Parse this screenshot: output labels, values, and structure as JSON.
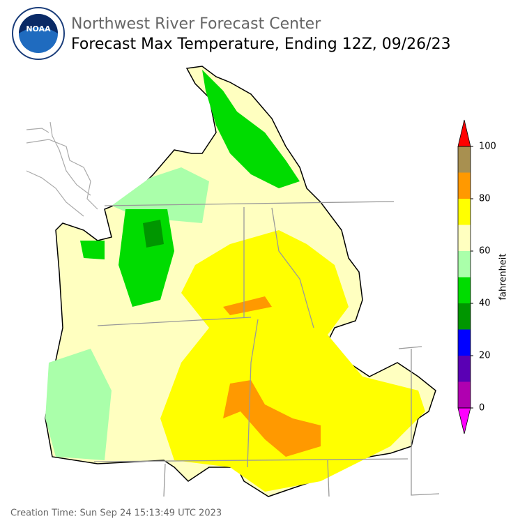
{
  "header": {
    "agency": "Northwest River Forecast Center",
    "title": "Forecast Max Temperature, Ending 12Z, 09/26/23"
  },
  "footer": {
    "creation_time": "Creation Time: Sun Sep 24 15:13:49 UTC 2023"
  },
  "colorbar": {
    "label": "fahrenheit",
    "bounds": [
      0,
      10,
      20,
      30,
      40,
      50,
      60,
      70,
      80,
      90,
      100
    ],
    "colors": [
      "#b000b0",
      "#5a00b4",
      "#0000ff",
      "#009600",
      "#00dc00",
      "#aaffaa",
      "#ffffc0",
      "#ffff00",
      "#ff9900",
      "#a89050"
    ],
    "under_color": "#ff00ff",
    "over_color": "#ff0000",
    "ticks": [
      0,
      20,
      40,
      60,
      80,
      100
    ]
  }
}
